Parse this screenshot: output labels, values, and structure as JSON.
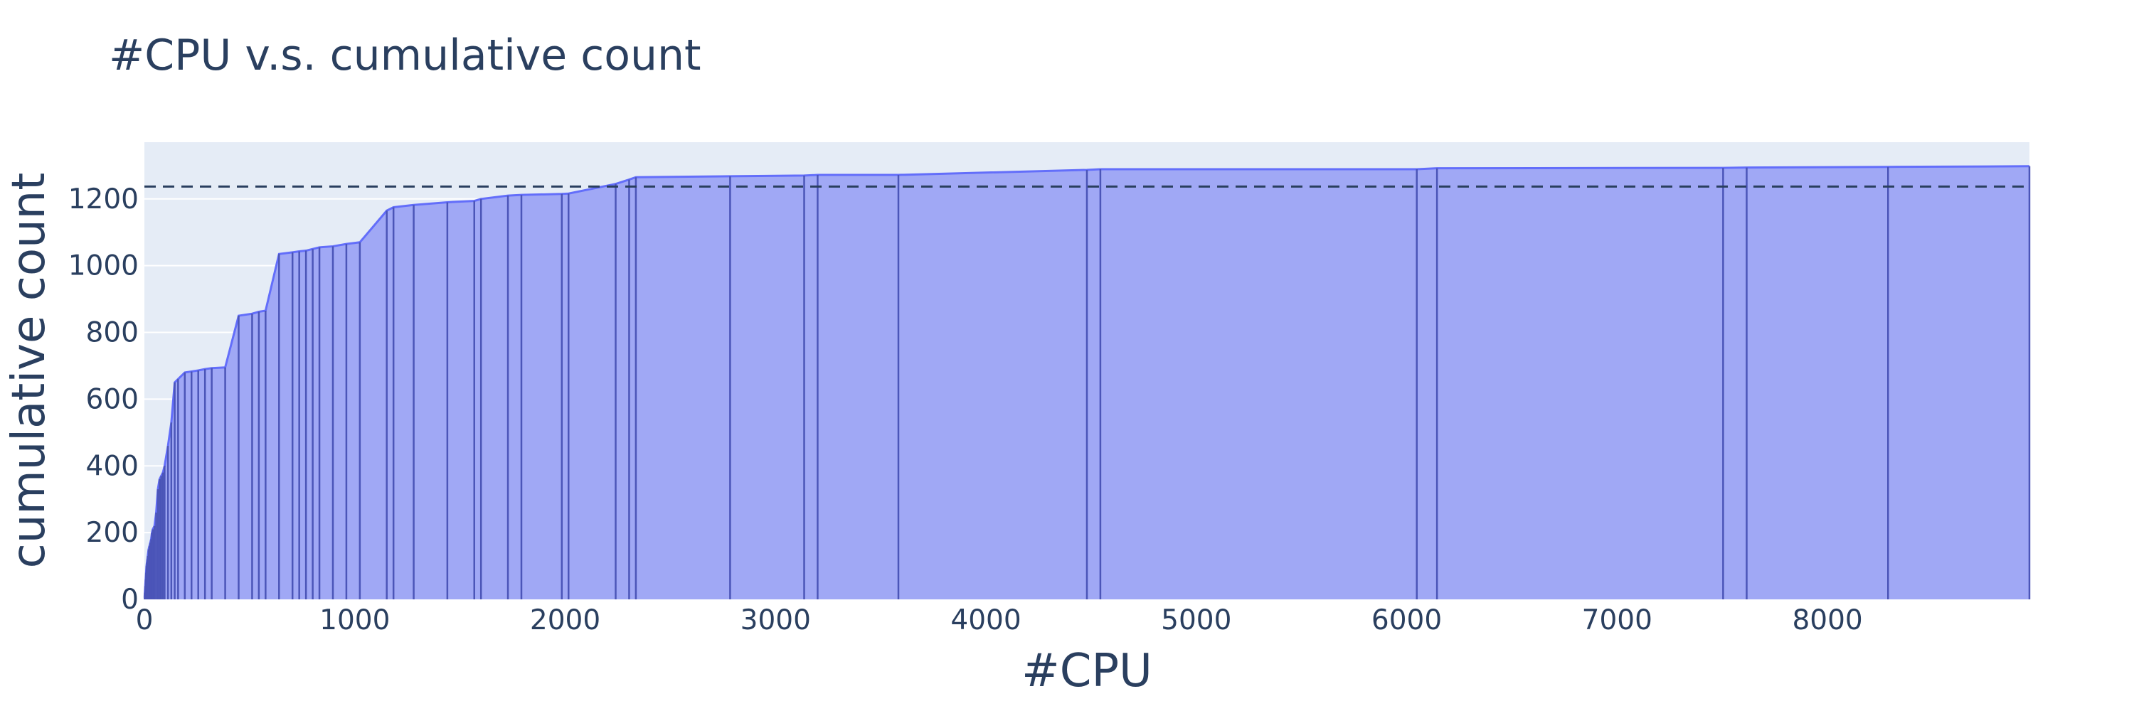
{
  "chart_data": {
    "type": "area",
    "title": "#CPU v.s. cumulative count",
    "xlabel": "#CPU",
    "ylabel": "cumulative count",
    "xlim": [
      0,
      8960
    ],
    "ylim": [
      0,
      1370
    ],
    "x_ticks": [
      0,
      1000,
      2000,
      3000,
      4000,
      5000,
      6000,
      7000,
      8000
    ],
    "y_ticks": [
      0,
      200,
      400,
      600,
      800,
      1000,
      1200
    ],
    "grid": true,
    "reference_line": {
      "y": 1237,
      "style": "dashed"
    },
    "colors": {
      "fill": "#a0a8f5",
      "line": "#636efa",
      "drop_lines": "#4b55b8",
      "plot_bg": "#e5ecf6",
      "grid": "#ffffff",
      "text": "#2a3f5f",
      "reference": "#2a3f5f"
    },
    "x": [
      1,
      2,
      4,
      6,
      8,
      10,
      12,
      14,
      16,
      20,
      24,
      28,
      32,
      36,
      40,
      48,
      56,
      64,
      72,
      80,
      88,
      96,
      112,
      128,
      144,
      160,
      192,
      224,
      256,
      288,
      320,
      384,
      448,
      512,
      544,
      576,
      640,
      704,
      736,
      768,
      800,
      832,
      896,
      960,
      1024,
      1152,
      1184,
      1280,
      1440,
      1568,
      1600,
      1728,
      1792,
      1984,
      2016,
      2240,
      2304,
      2336,
      2784,
      3136,
      3200,
      3584,
      4480,
      4544,
      6048,
      6144,
      7504,
      7616,
      8288,
      8960
    ],
    "y": [
      5,
      20,
      40,
      60,
      80,
      100,
      110,
      120,
      130,
      150,
      160,
      170,
      180,
      200,
      210,
      220,
      260,
      330,
      360,
      370,
      380,
      400,
      460,
      530,
      650,
      660,
      680,
      683,
      686,
      690,
      693,
      695,
      850,
      856,
      862,
      865,
      1035,
      1040,
      1043,
      1045,
      1050,
      1055,
      1058,
      1065,
      1070,
      1165,
      1175,
      1182,
      1190,
      1194,
      1200,
      1210,
      1212,
      1215,
      1216,
      1245,
      1258,
      1265,
      1268,
      1270,
      1272,
      1272,
      1287,
      1289,
      1289,
      1292,
      1293,
      1294,
      1296,
      1298
    ]
  }
}
